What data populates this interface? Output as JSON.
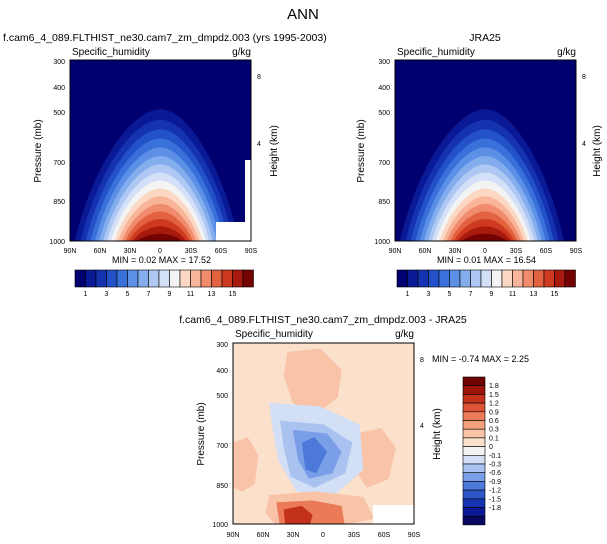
{
  "page_title": "ANN",
  "colors": {
    "seq": [
      "#000070",
      "#0a1a96",
      "#1533b0",
      "#2352c8",
      "#3a70da",
      "#5c8fe6",
      "#84adee",
      "#aec8f3",
      "#d3e0f7",
      "#f3f3f3",
      "#fcd7c3",
      "#f8b599",
      "#f08c6d",
      "#e2613f",
      "#cd3a1f",
      "#a81a0e",
      "#750303"
    ],
    "div": [
      "#05085e",
      "#0a1a96",
      "#1533b0",
      "#2c57c8",
      "#4d79db",
      "#7a9ee8",
      "#a9c2f0",
      "#d2dff5",
      "#f2f2f2",
      "#fbe0cc",
      "#f8c3a6",
      "#f3a07f",
      "#ea7a58",
      "#dc5434",
      "#c3301b",
      "#9d150a",
      "#6e0303"
    ],
    "land": "#ffffff"
  },
  "chart_data": [
    {
      "id": "top-left",
      "type": "heatmap",
      "title": "f.cam6_4_089.FLTHIST_ne30.cam7_zm_dmpdz.003 (yrs 1995-2003)",
      "field_label": "Specific_humidity",
      "units": "g/kg",
      "ylabel": "Pressure (mb)",
      "ylabel_right": "Height (km)",
      "x_ticks": [
        "90N",
        "60N",
        "30N",
        "0",
        "30S",
        "60S",
        "90S"
      ],
      "y_ticks": [
        "300",
        "400",
        "500",
        "700",
        "850",
        "1000"
      ],
      "height_ticks": [
        "8",
        "4"
      ],
      "stats_text": "MIN =  0.02  MAX =  17.52",
      "min": 0.02,
      "max": 17.52,
      "colorbar_ticks": [
        "1",
        "3",
        "5",
        "7",
        "9",
        "11",
        "13",
        "15"
      ],
      "missing": true
    },
    {
      "id": "top-right",
      "type": "heatmap",
      "title": "JRA25",
      "field_label": "Specific_humidity",
      "units": "g/kg",
      "ylabel": "Pressure (mb)",
      "ylabel_right": "Height (km)",
      "x_ticks": [
        "90N",
        "60N",
        "30N",
        "0",
        "30S",
        "60S",
        "90S"
      ],
      "y_ticks": [
        "300",
        "400",
        "500",
        "700",
        "850",
        "1000"
      ],
      "height_ticks": [
        "8",
        "4"
      ],
      "stats_text": "MIN =  0.01  MAX =  16.54",
      "min": 0.01,
      "max": 16.54,
      "colorbar_ticks": [
        "1",
        "3",
        "5",
        "7",
        "9",
        "11",
        "13",
        "15"
      ],
      "missing": false
    },
    {
      "id": "bottom",
      "type": "heatmap",
      "title": "f.cam6_4_089.FLTHIST_ne30.cam7_zm_dmpdz.003 - JRA25",
      "field_label": "Specific_humidity",
      "units": "g/kg",
      "ylabel": "Pressure (mb)",
      "ylabel_right": "Height (km)",
      "x_ticks": [
        "90N",
        "60N",
        "30N",
        "0",
        "30S",
        "60S",
        "90S"
      ],
      "y_ticks": [
        "300",
        "400",
        "500",
        "700",
        "850",
        "1000"
      ],
      "height_ticks": [
        "8",
        "4"
      ],
      "stats_text": "MIN = -0.74  MAX =  2.25",
      "min": -0.74,
      "max": 2.25,
      "colorbar_ticks": [
        "1.8",
        "1.5",
        "1.2",
        "0.9",
        "0.6",
        "0.3",
        "0.1",
        "0",
        "-0.1",
        "-0.3",
        "-0.6",
        "-0.9",
        "-1.2",
        "-1.5",
        "-1.8"
      ]
    }
  ]
}
